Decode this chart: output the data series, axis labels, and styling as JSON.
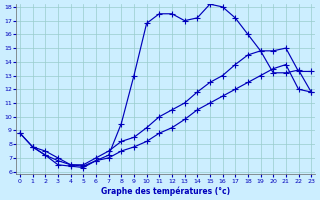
{
  "title": "Graphe des températures (°c)",
  "bg_color": "#cceeff",
  "line_color": "#0000bb",
  "grid_color": "#99cccc",
  "xlim": [
    0,
    23
  ],
  "ylim": [
    6,
    18
  ],
  "xticks": [
    0,
    1,
    2,
    3,
    4,
    5,
    6,
    7,
    8,
    9,
    10,
    11,
    12,
    13,
    14,
    15,
    16,
    17,
    18,
    19,
    20,
    21,
    22,
    23
  ],
  "yticks": [
    6,
    7,
    8,
    9,
    10,
    11,
    12,
    13,
    14,
    15,
    16,
    17,
    18
  ],
  "line1_x": [
    0,
    1,
    2,
    3,
    4,
    5,
    6,
    7,
    8,
    9,
    10,
    11,
    12,
    13,
    14,
    15,
    16,
    17,
    18,
    19,
    20,
    21,
    22,
    23
  ],
  "line1_y": [
    8.8,
    7.8,
    7.2,
    6.5,
    6.4,
    6.3,
    6.8,
    7.2,
    9.5,
    13.0,
    16.8,
    17.5,
    17.5,
    17.0,
    17.2,
    18.2,
    18.0,
    17.2,
    16.0,
    14.8,
    13.2,
    13.2,
    13.4,
    11.8
  ],
  "line2_x": [
    0,
    1,
    2,
    3,
    4,
    5,
    6,
    7,
    8,
    9,
    10,
    11,
    12,
    13,
    14,
    15,
    16,
    17,
    18,
    19,
    20,
    21,
    22,
    23
  ],
  "line2_y": [
    8.8,
    7.8,
    7.5,
    7.0,
    6.5,
    6.5,
    7.0,
    7.5,
    8.2,
    8.5,
    9.2,
    10.0,
    10.5,
    11.0,
    11.8,
    12.5,
    13.0,
    13.8,
    14.5,
    14.8,
    14.8,
    15.0,
    13.3,
    13.3
  ],
  "line3_x": [
    1,
    2,
    3,
    4,
    5,
    6,
    7,
    8,
    9,
    10,
    11,
    12,
    13,
    14,
    15,
    16,
    17,
    18,
    19,
    20,
    21,
    22,
    23
  ],
  "line3_y": [
    7.8,
    7.2,
    6.8,
    6.5,
    6.4,
    6.8,
    7.0,
    7.5,
    7.8,
    8.2,
    8.8,
    9.2,
    9.8,
    10.5,
    11.0,
    11.5,
    12.0,
    12.5,
    13.0,
    13.5,
    13.8,
    12.0,
    11.8
  ]
}
